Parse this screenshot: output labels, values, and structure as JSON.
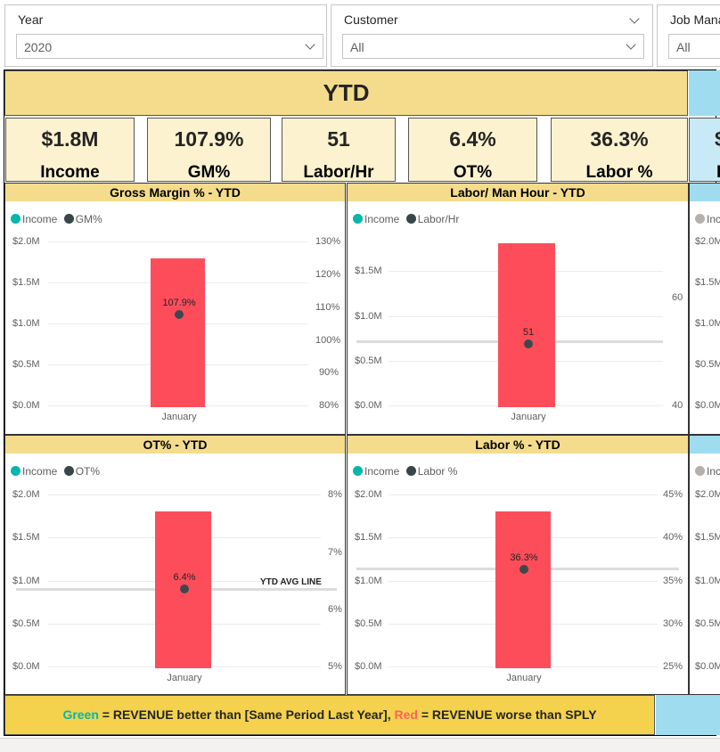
{
  "slicers": {
    "year": {
      "label": "Year",
      "value": "2020"
    },
    "customer": {
      "label": "Customer",
      "value": "All"
    },
    "job_manager": {
      "label": "Job Mana",
      "value": "All"
    }
  },
  "header": {
    "title": "YTD"
  },
  "kpis": [
    {
      "value": "$1.8M",
      "label": "Income"
    },
    {
      "value": "107.9%",
      "label": "GM%"
    },
    {
      "value": "51",
      "label": "Labor/Hr"
    },
    {
      "value": "6.4%",
      "label": "OT%"
    },
    {
      "value": "36.3%",
      "label": "Labor %"
    },
    {
      "value": "$",
      "label": "I"
    }
  ],
  "colors": {
    "bar": "#fd4d5b",
    "income_dot": "#01b8aa",
    "measure_dot": "#374649",
    "header_bg": "#f4dc8c",
    "note_bg": "#f4d24e",
    "side_panel": "#9fdcf0",
    "green_text": "#01b8aa",
    "red_text": "#fd625e"
  },
  "charts": {
    "gm": {
      "title": "Gross Margin %   -   YTD",
      "legend_income": "Income",
      "legend_measure": "GM%",
      "x_label": "January",
      "point_label": "107.9%"
    },
    "labor_hr": {
      "title": "Labor/ Man Hour   -   YTD",
      "legend_income": "Income",
      "legend_measure": "Labor/Hr",
      "x_label": "January",
      "point_label": "51"
    },
    "ot": {
      "title": "OT%    -   YTD",
      "legend_income": "Income",
      "legend_measure": "OT%",
      "x_label": "January",
      "point_label": "6.4%",
      "avg_line_label": "YTD AVG LINE"
    },
    "labor_pct": {
      "title": "Labor %    -   YTD",
      "legend_income": "Income",
      "legend_measure": "Labor %",
      "x_label": "January",
      "point_label": "36.3%"
    },
    "side": {
      "legend_income": "Inc",
      "ticks": [
        "$2.0M",
        "$1.5M",
        "$1.0M",
        "$0.5M",
        "$0.0M"
      ],
      "ticks_bottom": [
        "$2.0M",
        "$1.5M",
        "$1.0M",
        "$0.5M",
        "$0.0M"
      ]
    }
  },
  "chart_data": [
    {
      "type": "bar",
      "title": "Gross Margin %   -   YTD",
      "categories": [
        "January"
      ],
      "series": [
        {
          "name": "Income",
          "values": [
            1.8
          ],
          "axis": "left"
        },
        {
          "name": "GM%",
          "values": [
            107.9
          ],
          "axis": "right",
          "kind": "point"
        }
      ],
      "y_left_ticks": [
        "$2.0M",
        "$1.5M",
        "$1.0M",
        "$0.5M",
        "$0.0M"
      ],
      "ylim_left": [
        0,
        2.0
      ],
      "y_right_ticks": [
        "130%",
        "120%",
        "110%",
        "100%",
        "90%",
        "80%"
      ],
      "ylim_right": [
        80,
        130
      ]
    },
    {
      "type": "bar",
      "title": "Labor/ Man Hour   -   YTD",
      "categories": [
        "January"
      ],
      "series": [
        {
          "name": "Income",
          "values": [
            1.8
          ],
          "axis": "left"
        },
        {
          "name": "Labor/Hr",
          "values": [
            51
          ],
          "axis": "right",
          "kind": "point"
        }
      ],
      "y_left_ticks": [
        "$1.5M",
        "$1.0M",
        "$0.5M",
        "$0.0M"
      ],
      "ylim_left": [
        0,
        1.8
      ],
      "y_right_ticks": [
        "60",
        "40"
      ],
      "ylim_right": [
        40,
        66
      ]
    },
    {
      "type": "bar",
      "title": "OT%    -   YTD",
      "categories": [
        "January"
      ],
      "series": [
        {
          "name": "Income",
          "values": [
            1.8
          ],
          "axis": "left"
        },
        {
          "name": "OT%",
          "values": [
            6.4
          ],
          "axis": "right",
          "kind": "point"
        }
      ],
      "y_left_ticks": [
        "$2.0M",
        "$1.5M",
        "$1.0M",
        "$0.5M",
        "$0.0M"
      ],
      "ylim_left": [
        0,
        2.0
      ],
      "y_right_ticks": [
        "8%",
        "7%",
        "6%",
        "5%"
      ],
      "ylim_right": [
        5,
        8
      ]
    },
    {
      "type": "bar",
      "title": "Labor %    -   YTD",
      "categories": [
        "January"
      ],
      "series": [
        {
          "name": "Income",
          "values": [
            1.8
          ],
          "axis": "left"
        },
        {
          "name": "Labor %",
          "values": [
            36.3
          ],
          "axis": "right",
          "kind": "point"
        }
      ],
      "y_left_ticks": [
        "$2.0M",
        "$1.5M",
        "$1.0M",
        "$0.5M",
        "$0.0M"
      ],
      "ylim_left": [
        0,
        2.0
      ],
      "y_right_ticks": [
        "45%",
        "40%",
        "35%",
        "30%",
        "25%"
      ],
      "ylim_right": [
        25,
        45
      ]
    }
  ],
  "note": {
    "green_word": "Green",
    "green_text": " = REVENUE better than [Same Period Last Year],  ",
    "red_word": "Red",
    "red_text": " = REVENUE worse than SPLY"
  }
}
